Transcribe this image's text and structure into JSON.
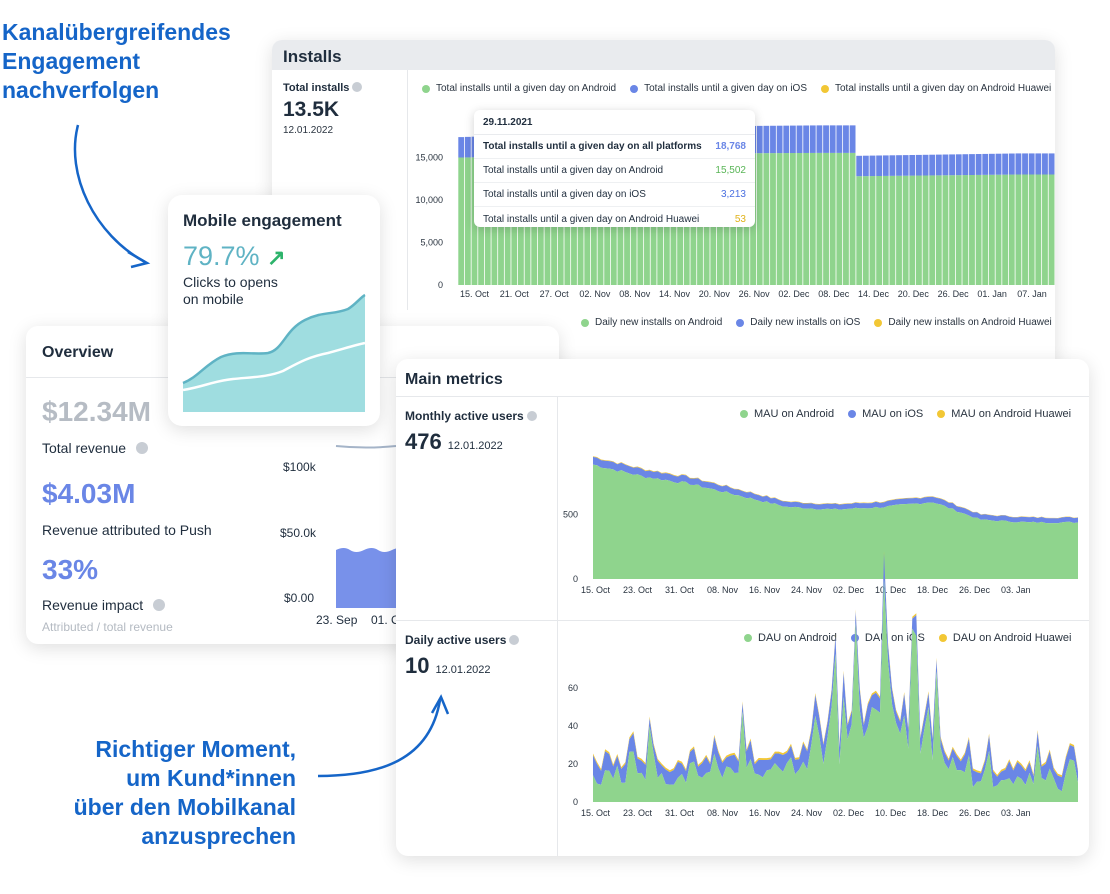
{
  "callouts": {
    "top": [
      "Kanalübergreifendes",
      "Engagement",
      "nachverfolgen"
    ],
    "bottom": [
      "Richtiger Moment,",
      "um Kund*innen",
      "über den Mobilkanal",
      "anzusprechen"
    ]
  },
  "colors": {
    "android": "#8fd48d",
    "ios": "#6a86e6",
    "huawei": "#f2c735",
    "accent_blue": "#1565c8",
    "mobile_fill": "#9fdde0",
    "mobile_line": "#5fb3c4"
  },
  "installs": {
    "title": "Installs",
    "kpi_label": "Total installs",
    "kpi_value": "13.5K",
    "kpi_date": "12.01.2022",
    "legend": [
      "Total installs until a given day on Android",
      "Total installs until a given day on iOS",
      "Total installs until a given day on Android Huawei"
    ],
    "y_ticks": [
      "15,000",
      "10,000",
      "5,000",
      "0"
    ],
    "x_ticks": [
      "15. Oct",
      "21. Oct",
      "27. Oct",
      "02. Nov",
      "08. Nov",
      "14. Nov",
      "20. Nov",
      "26. Nov",
      "02. Dec",
      "08. Dec",
      "14. Dec",
      "20. Dec",
      "26. Dec",
      "01. Jan",
      "07. Jan"
    ],
    "tooltip": {
      "date": "29.11.2021",
      "rows": [
        {
          "label": "Total installs until a given day on all platforms",
          "value": "18,768"
        },
        {
          "label": "Total installs until a given day on Android",
          "value": "15,502"
        },
        {
          "label": "Total installs until a given day on iOS",
          "value": "3,213"
        },
        {
          "label": "Total installs until a given day on Android Huawei",
          "value": "53"
        }
      ]
    },
    "daily_legend": [
      "Daily new installs on Android",
      "Daily new installs on iOS",
      "Daily new installs on Android Huawei"
    ]
  },
  "mobile": {
    "title": "Mobile engagement",
    "value": "79.7%",
    "arrow": "↗",
    "desc1": "Clicks to opens",
    "desc2": "on mobile"
  },
  "overview": {
    "title": "Overview",
    "total_revenue_value": "$12.34M",
    "total_revenue_label": "Total revenue",
    "push_value": "$4.03M",
    "push_label": "Revenue attributed to Push",
    "impact_value": "33%",
    "impact_label": "Revenue impact",
    "impact_sub": "Attributed / total revenue",
    "y_ticks": [
      "$100k",
      "$50.0k",
      "$0.00"
    ],
    "x_ticks": [
      "23. Sep",
      "01. O"
    ]
  },
  "metrics": {
    "title": "Main metrics",
    "mau_label": "Monthly active users",
    "mau_value": "476",
    "mau_date": "12.01.2022",
    "mau_legend": [
      "MAU on Android",
      "MAU on iOS",
      "MAU on Android Huawei"
    ],
    "mau_y_ticks": [
      "500",
      "0"
    ],
    "dau_label": "Daily active users",
    "dau_value": "10",
    "dau_date": "12.01.2022",
    "dau_legend": [
      "DAU on Android",
      "DAU on iOS",
      "DAU on Android Huawei"
    ],
    "dau_y_ticks": [
      "60",
      "40",
      "20",
      "0"
    ],
    "x_ticks": [
      "15. Oct",
      "23. Oct",
      "31. Oct",
      "08. Nov",
      "16. Nov",
      "24. Nov",
      "02. Dec",
      "10. Dec",
      "18. Dec",
      "26. Dec",
      "03. Jan"
    ]
  },
  "chart_data": [
    {
      "type": "bar",
      "title": "Installs",
      "stacked": true,
      "categories": [
        "15. Oct",
        "21. Oct",
        "27. Oct",
        "02. Nov",
        "08. Nov",
        "14. Nov",
        "20. Nov",
        "26. Nov",
        "02. Dec",
        "08. Dec",
        "14. Dec",
        "20. Dec",
        "26. Dec",
        "01. Jan",
        "07. Jan"
      ],
      "series": [
        {
          "name": "Total installs until a given day on Android",
          "values": [
            15000,
            15050,
            15100,
            15150,
            15200,
            15250,
            15350,
            15500,
            15520,
            15540,
            12800,
            12850,
            12900,
            12950,
            13000
          ]
        },
        {
          "name": "Total installs until a given day on iOS",
          "values": [
            2400,
            2500,
            2600,
            2700,
            2800,
            2900,
            3000,
            3200,
            3220,
            3240,
            2400,
            2420,
            2440,
            2460,
            2480
          ]
        },
        {
          "name": "Total installs until a given day on Android Huawei",
          "values": [
            50,
            50,
            50,
            50,
            51,
            51,
            52,
            53,
            53,
            53,
            53,
            53,
            53,
            53,
            53
          ]
        }
      ],
      "ylim": [
        0,
        20000
      ]
    },
    {
      "type": "area",
      "title": "Monthly active users",
      "x": [
        "15. Oct",
        "23. Oct",
        "31. Oct",
        "08. Nov",
        "16. Nov",
        "24. Nov",
        "02. Dec",
        "10. Dec",
        "18. Dec",
        "26. Dec",
        "03. Jan"
      ],
      "series": [
        {
          "name": "MAU on Android",
          "values": [
            890,
            800,
            740,
            650,
            560,
            540,
            560,
            600,
            460,
            440,
            440
          ]
        },
        {
          "name": "MAU on iOS",
          "values": [
            60,
            55,
            50,
            45,
            40,
            40,
            40,
            45,
            40,
            38,
            38
          ]
        },
        {
          "name": "MAU on Android Huawei",
          "values": [
            5,
            5,
            5,
            4,
            4,
            4,
            4,
            4,
            3,
            3,
            3
          ]
        }
      ],
      "ylim": [
        0,
        1050
      ]
    },
    {
      "type": "area",
      "title": "Daily active users",
      "x": [
        "15. Oct",
        "23. Oct",
        "31. Oct",
        "08. Nov",
        "16. Nov",
        "24. Nov",
        "02. Dec",
        "10. Dec",
        "18. Dec",
        "26. Dec",
        "03. Jan"
      ],
      "series": [
        {
          "name": "DAU on Android",
          "values": [
            14,
            16,
            12,
            18,
            22,
            30,
            45,
            28,
            10,
            12,
            8
          ]
        },
        {
          "name": "DAU on iOS",
          "values": [
            8,
            7,
            6,
            7,
            8,
            9,
            10,
            8,
            6,
            7,
            6
          ]
        },
        {
          "name": "DAU on Android Huawei",
          "values": [
            1,
            1,
            1,
            1,
            1,
            1,
            1,
            1,
            1,
            1,
            1
          ]
        }
      ],
      "ylim": [
        0,
        70
      ]
    }
  ]
}
